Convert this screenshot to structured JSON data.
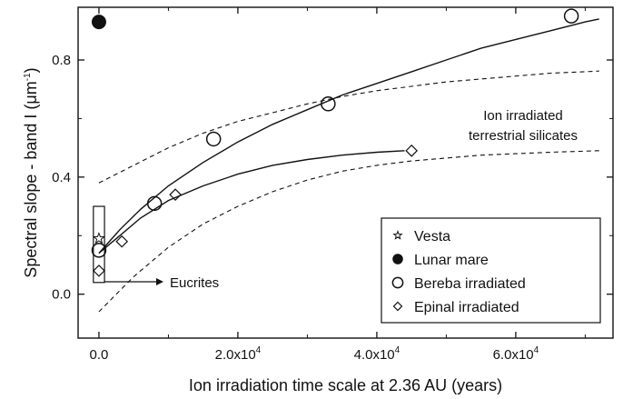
{
  "chart_data": {
    "type": "scatter",
    "xlabel": "Ion irradiation time scale at 2.36 AU (years)",
    "ylabel_main": "Spectral slope - band I (",
    "ylabel_unit": "μm",
    "ylabel_exp": "-1",
    "ylabel_close": ")",
    "xlim": [
      -3000,
      74000
    ],
    "ylim": [
      -0.15,
      0.98
    ],
    "x_ticks": [
      {
        "value": 0,
        "mantissa": "0.0",
        "exp": ""
      },
      {
        "value": 20000,
        "mantissa": "2.0x10",
        "exp": "4"
      },
      {
        "value": 40000,
        "mantissa": "4.0x10",
        "exp": "4"
      },
      {
        "value": 60000,
        "mantissa": "6.0x10",
        "exp": "4"
      }
    ],
    "y_ticks": [
      {
        "value": 0.0,
        "label": "0.0"
      },
      {
        "value": 0.4,
        "label": "0.4"
      },
      {
        "value": 0.8,
        "label": "0.8"
      }
    ],
    "series": [
      {
        "name": "Vesta",
        "marker": "star",
        "points": [
          [
            0,
            0.19
          ]
        ]
      },
      {
        "name": "Lunar mare",
        "marker": "filled-circle",
        "points": [
          [
            0,
            0.93
          ]
        ]
      },
      {
        "name": "Bereba irradiated",
        "marker": "open-circle",
        "points": [
          [
            0,
            0.15
          ],
          [
            8000,
            0.31
          ],
          [
            16500,
            0.53
          ],
          [
            33000,
            0.65
          ],
          [
            68000,
            0.95
          ]
        ]
      },
      {
        "name": "Epinal irradiated",
        "marker": "open-diamond",
        "points": [
          [
            0,
            0.08
          ],
          [
            3300,
            0.18
          ],
          [
            11000,
            0.34
          ],
          [
            45000,
            0.49
          ]
        ]
      }
    ],
    "fit_curves": [
      {
        "style": "solid",
        "points": [
          [
            0,
            0.14
          ],
          [
            3000,
            0.22
          ],
          [
            6000,
            0.29
          ],
          [
            10000,
            0.37
          ],
          [
            15000,
            0.45
          ],
          [
            20000,
            0.52
          ],
          [
            25000,
            0.58
          ],
          [
            30000,
            0.63
          ],
          [
            35000,
            0.68
          ],
          [
            40000,
            0.72
          ],
          [
            45000,
            0.76
          ],
          [
            50000,
            0.8
          ],
          [
            55000,
            0.84
          ],
          [
            60000,
            0.87
          ],
          [
            65000,
            0.9
          ],
          [
            70000,
            0.93
          ],
          [
            72000,
            0.94
          ]
        ]
      },
      {
        "style": "solid",
        "points": [
          [
            0,
            0.14
          ],
          [
            3000,
            0.2
          ],
          [
            6000,
            0.26
          ],
          [
            10000,
            0.32
          ],
          [
            15000,
            0.37
          ],
          [
            20000,
            0.41
          ],
          [
            25000,
            0.44
          ],
          [
            30000,
            0.46
          ],
          [
            35000,
            0.475
          ],
          [
            40000,
            0.485
          ],
          [
            44000,
            0.49
          ]
        ]
      },
      {
        "style": "dashed",
        "points": [
          [
            0,
            0.38
          ],
          [
            5000,
            0.44
          ],
          [
            10000,
            0.5
          ],
          [
            15000,
            0.55
          ],
          [
            20000,
            0.59
          ],
          [
            25000,
            0.62
          ],
          [
            30000,
            0.65
          ],
          [
            35000,
            0.675
          ],
          [
            40000,
            0.695
          ],
          [
            45000,
            0.71
          ],
          [
            50000,
            0.725
          ],
          [
            55000,
            0.735
          ],
          [
            60000,
            0.745
          ],
          [
            65000,
            0.755
          ],
          [
            70000,
            0.76
          ],
          [
            72000,
            0.762
          ]
        ]
      },
      {
        "style": "dashed",
        "points": [
          [
            0,
            -0.06
          ],
          [
            5000,
            0.06
          ],
          [
            10000,
            0.16
          ],
          [
            15000,
            0.24
          ],
          [
            20000,
            0.3
          ],
          [
            25000,
            0.35
          ],
          [
            30000,
            0.39
          ],
          [
            35000,
            0.42
          ],
          [
            40000,
            0.44
          ],
          [
            45000,
            0.455
          ],
          [
            50000,
            0.465
          ],
          [
            55000,
            0.475
          ],
          [
            60000,
            0.48
          ],
          [
            65000,
            0.485
          ],
          [
            72000,
            0.49
          ]
        ]
      }
    ],
    "annotations": {
      "ion_line1": "Ion irradiated",
      "ion_line2": "terrestrial silicates",
      "eucrites": "Eucrites"
    },
    "eucrite_box": {
      "x_range": [
        -800,
        800
      ],
      "y_range": [
        0.04,
        0.3
      ]
    },
    "legend_position": "bottom-right"
  }
}
